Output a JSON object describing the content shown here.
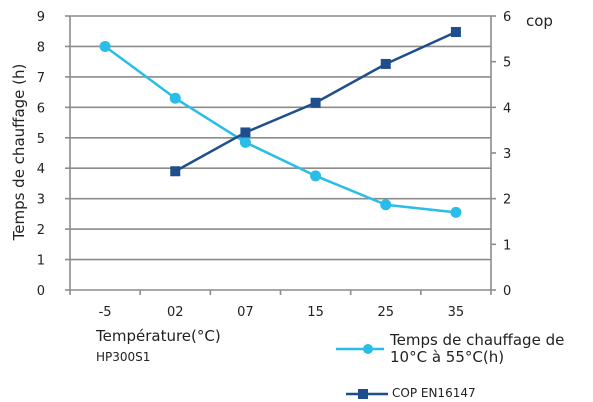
{
  "chart_data": {
    "type": "line",
    "categories": [
      "-5",
      "02",
      "07",
      "15",
      "25",
      "35"
    ],
    "xlabel": "Température(°C)",
    "subtitle": "HP300S1",
    "y_left": {
      "label": "Temps de chauffage (h)",
      "range": [
        0,
        9
      ],
      "ticks": [
        "0",
        "1",
        "2",
        "3",
        "4",
        "5",
        "6",
        "7",
        "8",
        "9"
      ]
    },
    "y_right": {
      "label": "cop",
      "range": [
        0,
        6
      ],
      "ticks": [
        "0",
        "1",
        "2",
        "3",
        "4",
        "5",
        "6"
      ]
    },
    "grid": "horizontal",
    "legend_position": "bottom-right",
    "series": [
      {
        "name": "Temps de chauffage de 10°C à 55°C(h)",
        "axis": "left",
        "color": "#29bde8",
        "marker": "circle",
        "values": [
          8.0,
          6.3,
          4.85,
          3.75,
          2.8,
          2.55
        ]
      },
      {
        "name": "COP EN16147",
        "axis": "right",
        "color": "#1f4e8c",
        "marker": "square",
        "values": [
          null,
          2.6,
          3.45,
          4.1,
          4.95,
          5.65
        ]
      }
    ]
  }
}
